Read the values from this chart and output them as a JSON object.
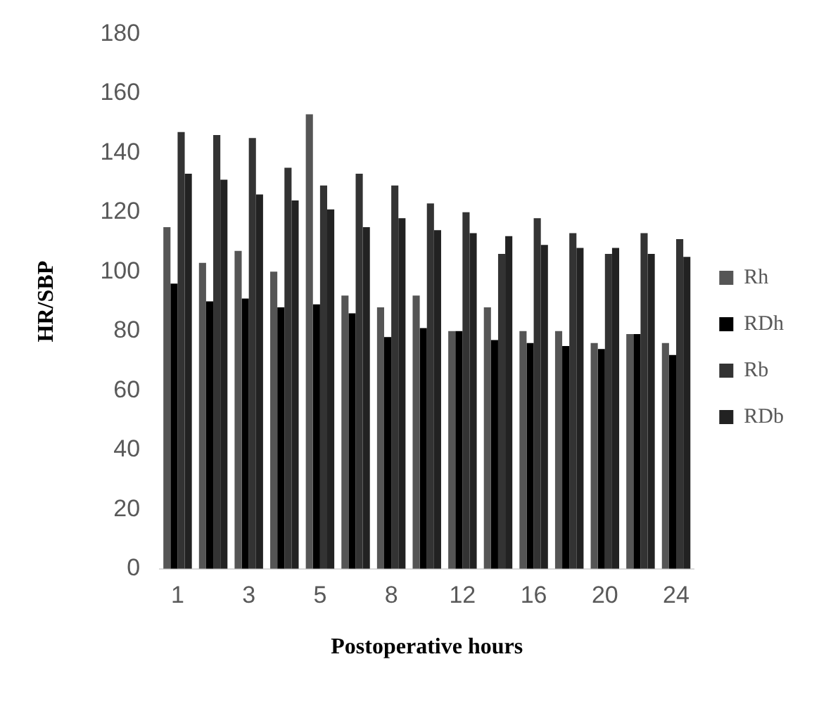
{
  "chart_data": {
    "type": "bar",
    "xlabel": "Postoperative hours",
    "ylabel": "HR/SBP",
    "categories": [
      "1",
      null,
      "3",
      null,
      "5",
      null,
      "8",
      null,
      "12",
      null,
      "16",
      null,
      "20",
      null,
      "24"
    ],
    "series": [
      {
        "name": "Rh",
        "color": "#555555",
        "values": [
          115,
          103,
          107,
          100,
          153,
          92,
          88,
          92,
          80,
          88,
          80,
          80,
          76,
          79,
          76
        ]
      },
      {
        "name": "RDh",
        "color": "#000000",
        "values": [
          96,
          90,
          91,
          88,
          89,
          86,
          78,
          81,
          80,
          77,
          76,
          75,
          74,
          79,
          72
        ]
      },
      {
        "name": "Rb",
        "color": "#333333",
        "values": [
          147,
          146,
          145,
          135,
          129,
          133,
          129,
          123,
          120,
          106,
          118,
          113,
          106,
          113,
          111
        ]
      },
      {
        "name": "RDb",
        "color": "#222222",
        "values": [
          133,
          131,
          126,
          124,
          121,
          115,
          118,
          114,
          113,
          112,
          109,
          108,
          108,
          106,
          105
        ]
      }
    ],
    "ylim": [
      0,
      180
    ],
    "yticks": [
      0,
      20,
      40,
      60,
      80,
      100,
      120,
      140,
      160,
      180
    ],
    "grid": false,
    "legend": "right"
  }
}
